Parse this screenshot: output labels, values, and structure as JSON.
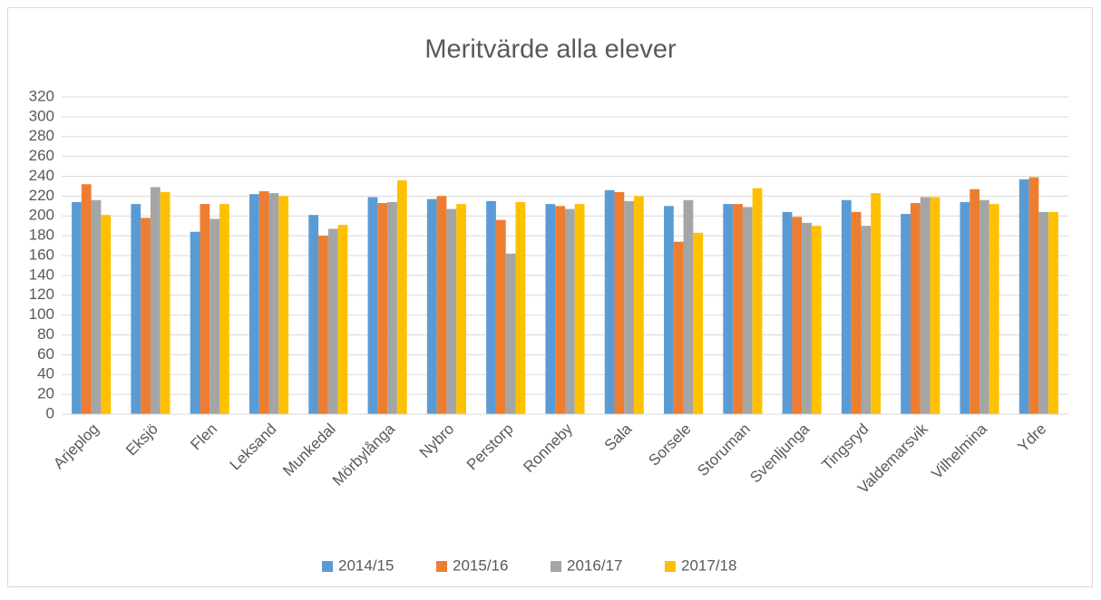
{
  "chart_data": {
    "type": "bar",
    "title": "Meritvärde alla elever",
    "categories": [
      "Arjeplog",
      "Eksjö",
      "Flen",
      "Leksand",
      "Munkedal",
      "Mörbylånga",
      "Nybro",
      "Perstorp",
      "Ronneby",
      "Sala",
      "Sorsele",
      "Storuman",
      "Svenljunga",
      "Tingsryd",
      "Valdemarsvik",
      "Vilhelmina",
      "Ydre"
    ],
    "series": [
      {
        "name": "2014/15",
        "color": "#5b9bd5",
        "values": [
          214,
          212,
          184,
          222,
          201,
          219,
          217,
          215,
          212,
          226,
          210,
          212,
          204,
          216,
          202,
          214,
          237
        ]
      },
      {
        "name": "2015/16",
        "color": "#ed7d31",
        "values": [
          232,
          198,
          212,
          225,
          180,
          213,
          220,
          196,
          210,
          224,
          174,
          212,
          199,
          204,
          213,
          227,
          239
        ]
      },
      {
        "name": "2016/17",
        "color": "#a5a5a5",
        "values": [
          216,
          229,
          197,
          223,
          187,
          214,
          207,
          162,
          207,
          215,
          216,
          209,
          193,
          190,
          219,
          216,
          204
        ]
      },
      {
        "name": "2017/18",
        "color": "#ffc000",
        "values": [
          201,
          224,
          212,
          220,
          191,
          236,
          212,
          214,
          212,
          220,
          183,
          228,
          190,
          223,
          219,
          212,
          204
        ]
      }
    ],
    "ylim": [
      0,
      320
    ],
    "yticks": [
      0,
      20,
      40,
      60,
      80,
      100,
      120,
      140,
      160,
      180,
      200,
      220,
      240,
      260,
      280,
      300,
      320
    ],
    "grid": true,
    "legend": "bottom"
  }
}
